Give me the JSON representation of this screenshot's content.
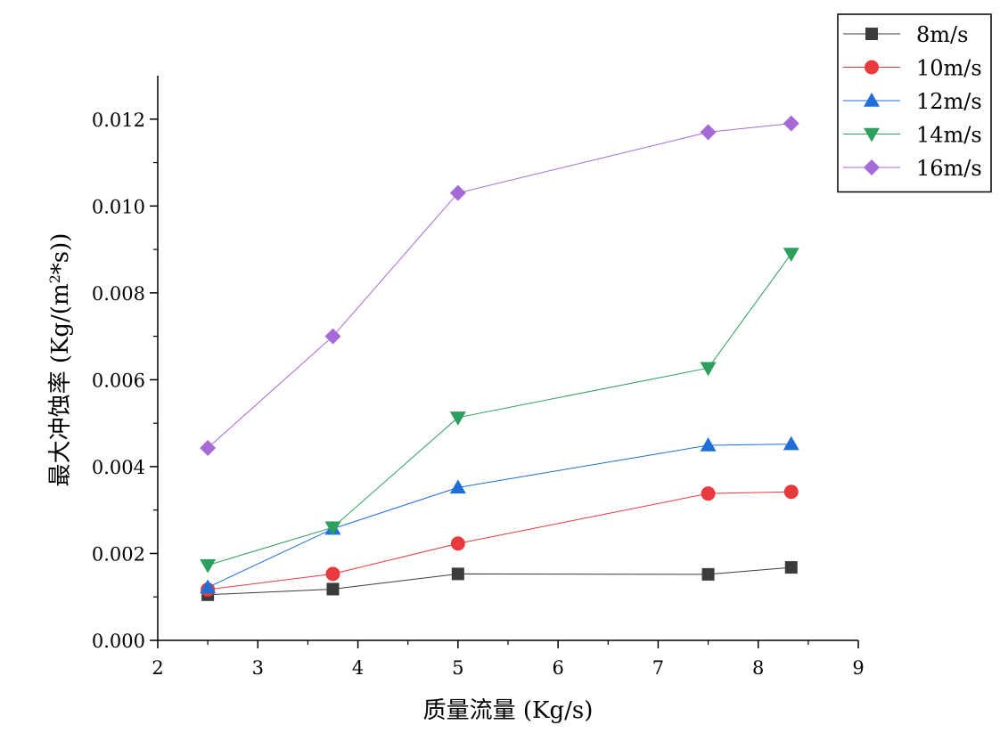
{
  "chart_data": {
    "type": "line",
    "xlabel": "质量流量 (Kg/s)",
    "ylabel_main": "最大冲蚀率 (Kg/(m",
    "ylabel_sup": "2",
    "ylabel_tail": "*s))",
    "xlim": [
      2,
      9
    ],
    "ylim": [
      0,
      0.013
    ],
    "xticks": [
      2,
      3,
      4,
      5,
      6,
      7,
      8,
      9
    ],
    "xtick_labels": [
      "2",
      "3",
      "4",
      "5",
      "6",
      "7",
      "8",
      "9"
    ],
    "yticks": [
      0,
      0.002,
      0.004,
      0.006,
      0.008,
      0.01,
      0.012
    ],
    "ytick_labels": [
      "0.000",
      "0.002",
      "0.004",
      "0.006",
      "0.008",
      "0.010",
      "0.012"
    ],
    "grid": false,
    "legend_position": "top-right",
    "x": [
      2.5,
      3.75,
      5.0,
      7.5,
      8.33
    ],
    "series": [
      {
        "name": "8m/s",
        "marker": "square",
        "color": "#3b3b3b",
        "values": [
          0.00105,
          0.00118,
          0.00153,
          0.00152,
          0.00168
        ]
      },
      {
        "name": "10m/s",
        "marker": "circle",
        "color": "#e8393f",
        "values": [
          0.00117,
          0.00153,
          0.00223,
          0.00338,
          0.00342
        ]
      },
      {
        "name": "12m/s",
        "marker": "triangle-up",
        "color": "#1f6fd6",
        "values": [
          0.00122,
          0.00257,
          0.00352,
          0.00449,
          0.00452
        ]
      },
      {
        "name": "14m/s",
        "marker": "triangle-down",
        "color": "#2c9e5e",
        "values": [
          0.00173,
          0.0026,
          0.00513,
          0.00627,
          0.0089
        ]
      },
      {
        "name": "16m/s",
        "marker": "diamond",
        "color": "#a66ad6",
        "values": [
          0.00443,
          0.007,
          0.0103,
          0.0117,
          0.0119
        ]
      }
    ]
  }
}
